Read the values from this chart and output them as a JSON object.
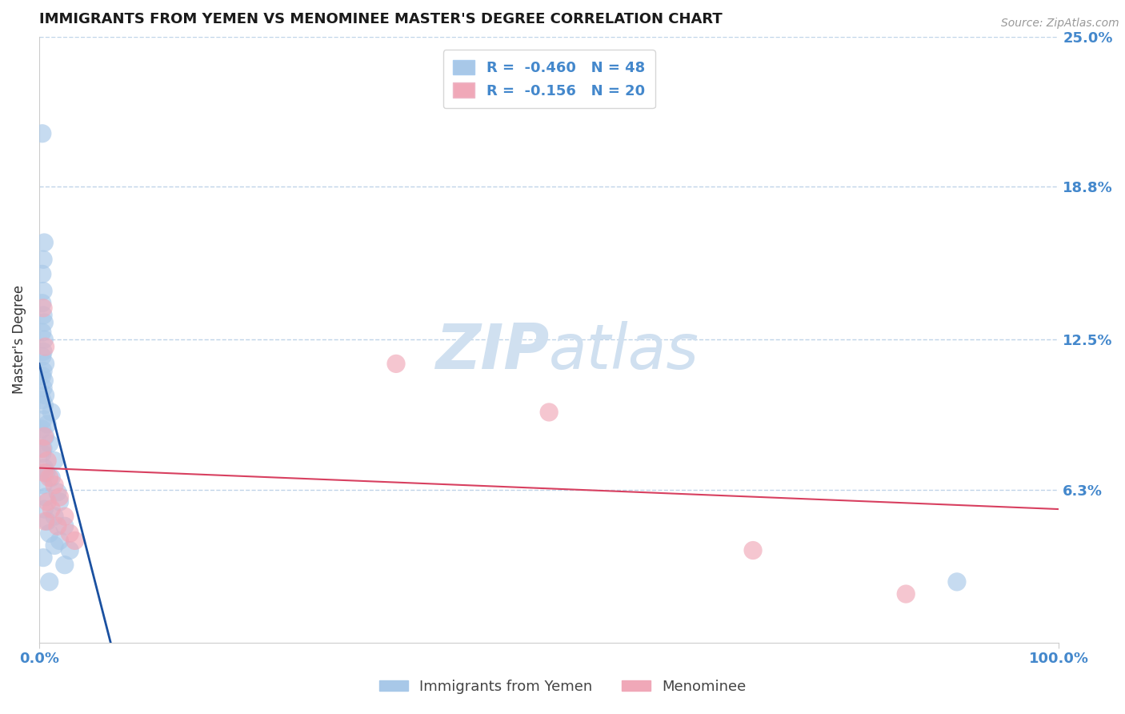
{
  "title": "IMMIGRANTS FROM YEMEN VS MENOMINEE MASTER'S DEGREE CORRELATION CHART",
  "source_text": "Source: ZipAtlas.com",
  "ylabel": "Master's Degree",
  "xlim": [
    0,
    100
  ],
  "ylim": [
    0,
    25
  ],
  "legend_blue_r": "-0.460",
  "legend_blue_n": "48",
  "legend_pink_r": "-0.156",
  "legend_pink_n": "20",
  "blue_color": "#a8c8e8",
  "pink_color": "#f0a8b8",
  "blue_line_color": "#1a50a0",
  "pink_line_color": "#d84060",
  "grid_color": "#c0d4e8",
  "watermark_color": "#d0e0f0",
  "title_color": "#1a1a1a",
  "ylabel_color": "#333333",
  "axis_label_color": "#4488cc",
  "ytick_values": [
    6.3,
    12.5,
    18.8,
    25.0
  ],
  "blue_dots": [
    [
      0.3,
      21.0
    ],
    [
      0.5,
      16.5
    ],
    [
      0.4,
      15.8
    ],
    [
      0.3,
      15.2
    ],
    [
      0.4,
      14.5
    ],
    [
      0.3,
      14.0
    ],
    [
      0.4,
      13.5
    ],
    [
      0.5,
      13.2
    ],
    [
      0.3,
      12.8
    ],
    [
      0.5,
      12.5
    ],
    [
      0.4,
      12.0
    ],
    [
      0.3,
      11.8
    ],
    [
      0.6,
      11.5
    ],
    [
      0.4,
      11.2
    ],
    [
      0.3,
      11.0
    ],
    [
      0.5,
      10.8
    ],
    [
      0.4,
      10.5
    ],
    [
      0.6,
      10.2
    ],
    [
      0.3,
      10.0
    ],
    [
      0.5,
      9.8
    ],
    [
      1.2,
      9.5
    ],
    [
      0.4,
      9.2
    ],
    [
      0.8,
      9.0
    ],
    [
      0.3,
      8.8
    ],
    [
      0.6,
      8.5
    ],
    [
      1.0,
      8.2
    ],
    [
      0.4,
      8.0
    ],
    [
      0.3,
      7.8
    ],
    [
      1.5,
      7.5
    ],
    [
      0.5,
      7.2
    ],
    [
      0.7,
      7.0
    ],
    [
      1.2,
      6.8
    ],
    [
      0.4,
      6.5
    ],
    [
      1.8,
      6.2
    ],
    [
      0.6,
      6.0
    ],
    [
      2.0,
      5.8
    ],
    [
      0.5,
      5.5
    ],
    [
      1.5,
      5.2
    ],
    [
      0.8,
      5.0
    ],
    [
      2.5,
      4.8
    ],
    [
      1.0,
      4.5
    ],
    [
      2.0,
      4.2
    ],
    [
      1.5,
      4.0
    ],
    [
      3.0,
      3.8
    ],
    [
      0.4,
      3.5
    ],
    [
      2.5,
      3.2
    ],
    [
      1.0,
      2.5
    ],
    [
      90.0,
      2.5
    ]
  ],
  "pink_dots": [
    [
      0.4,
      13.8
    ],
    [
      0.6,
      12.2
    ],
    [
      0.5,
      8.5
    ],
    [
      0.3,
      8.0
    ],
    [
      0.8,
      7.5
    ],
    [
      0.5,
      7.0
    ],
    [
      1.0,
      6.8
    ],
    [
      1.5,
      6.5
    ],
    [
      2.0,
      6.0
    ],
    [
      0.8,
      5.8
    ],
    [
      1.2,
      5.5
    ],
    [
      2.5,
      5.2
    ],
    [
      0.6,
      5.0
    ],
    [
      1.8,
      4.8
    ],
    [
      3.0,
      4.5
    ],
    [
      3.5,
      4.2
    ],
    [
      35.0,
      11.5
    ],
    [
      50.0,
      9.5
    ],
    [
      70.0,
      3.8
    ],
    [
      85.0,
      2.0
    ]
  ],
  "blue_line": {
    "x0": 0,
    "y0": 11.5,
    "x1": 7.0,
    "y1": 0.0
  },
  "pink_line": {
    "x0": 0,
    "y0": 7.2,
    "x1": 100,
    "y1": 5.5
  },
  "figsize": [
    14.06,
    8.92
  ],
  "dpi": 100
}
